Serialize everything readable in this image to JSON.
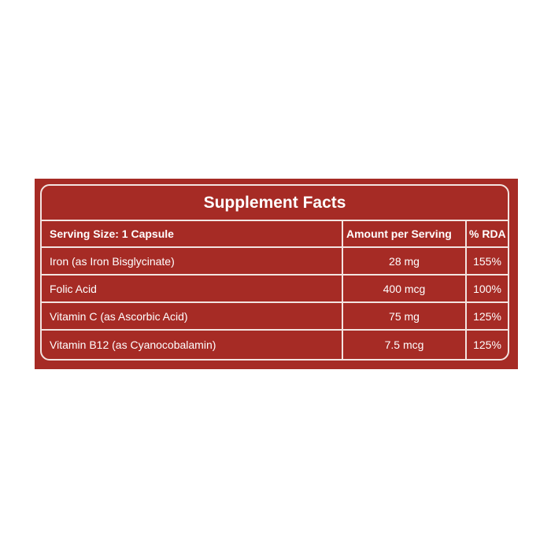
{
  "label": {
    "title": "Supplement Facts",
    "header": {
      "serving_size": "Serving Size: 1 Capsule",
      "amount_per_serving": "Amount per Serving",
      "rda": "% RDA"
    },
    "rows": [
      {
        "name": "Iron (as Iron Bisglycinate)",
        "amount": "28 mg",
        "rda": "155%"
      },
      {
        "name": "Folic Acid",
        "amount": "400 mcg",
        "rda": "100%"
      },
      {
        "name": "Vitamin C (as Ascorbic Acid)",
        "amount": "75 mg",
        "rda": "125%"
      },
      {
        "name": "Vitamin B12 (as Cyanocobalamin)",
        "amount": "7.5 mcg",
        "rda": "125%"
      }
    ]
  },
  "colors": {
    "panel_background": "#a62b25",
    "rule_color": "#f3e4e1",
    "text_color": "#ffffff"
  }
}
